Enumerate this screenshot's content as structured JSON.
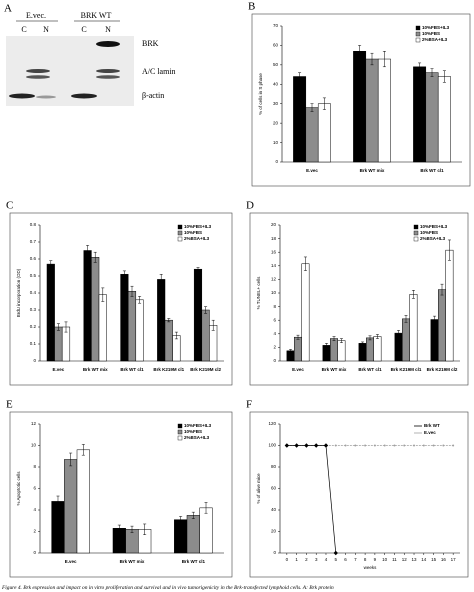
{
  "figure": {
    "panel": "A",
    "groups": [
      "E.vec.",
      "BRK WT"
    ],
    "lanes": [
      "C",
      "N",
      "C",
      "N"
    ],
    "bands": [
      "BRK",
      "A/C lamin",
      "β-actin"
    ],
    "caption": "Figure 4. Brk expression and impact on in vitro proliferation and survival and in vivo tumorigenicity in the Brk-transfected lymphoid cells. A: Brk protein"
  },
  "chart_data": [
    {
      "type": "bar",
      "panel": "B",
      "y_label": "% of cells in S phase",
      "categories": [
        "E.vec",
        "Brk WT mix",
        "Brk WT cl1"
      ],
      "series": [
        {
          "name": "10%FBS+IL3",
          "color": "#000000",
          "values": [
            44,
            57,
            49
          ],
          "errors": [
            2,
            3,
            2
          ]
        },
        {
          "name": "10%FBS",
          "color": "#8c8c8c",
          "values": [
            28,
            53,
            46
          ],
          "errors": [
            2,
            3,
            2
          ]
        },
        {
          "name": "2%BSA+IL3",
          "color": "#ffffff",
          "values": [
            30,
            53,
            44
          ],
          "errors": [
            3,
            4,
            3
          ]
        }
      ],
      "ylim": [
        0,
        70
      ],
      "yticks": [
        0,
        10,
        20,
        30,
        40,
        50,
        60,
        70
      ]
    },
    {
      "type": "bar",
      "panel": "C",
      "y_label": "BrdU incorporation (OD)",
      "categories": [
        "E.vec",
        "Brk WT mix",
        "Brk WT cl1",
        "Brk K219M cl1",
        "Brk K219M cl2"
      ],
      "series": [
        {
          "name": "10%FBS+IL3",
          "color": "#000000",
          "values": [
            0.57,
            0.65,
            0.51,
            0.48,
            0.54
          ],
          "errors": [
            0.02,
            0.03,
            0.02,
            0.03,
            0.01
          ]
        },
        {
          "name": "10%FBS",
          "color": "#8c8c8c",
          "values": [
            0.2,
            0.61,
            0.41,
            0.24,
            0.3
          ],
          "errors": [
            0.02,
            0.03,
            0.03,
            0.01,
            0.02
          ]
        },
        {
          "name": "2%BSA+IL3",
          "color": "#ffffff",
          "values": [
            0.2,
            0.39,
            0.36,
            0.15,
            0.21
          ],
          "errors": [
            0.03,
            0.04,
            0.02,
            0.02,
            0.03
          ]
        }
      ],
      "ylim": [
        0,
        0.8
      ],
      "yticks": [
        0,
        0.1,
        0.2,
        0.3,
        0.4,
        0.5,
        0.6,
        0.7,
        0.8
      ]
    },
    {
      "type": "bar",
      "panel": "D",
      "y_label": "% TUNEL+ cells",
      "categories": [
        "E.vec",
        "Brk WT mix",
        "Brk WT cl1",
        "Brk K219M cl1",
        "Brk K219M cl2"
      ],
      "series": [
        {
          "name": "10%FBS+IL3",
          "color": "#000000",
          "values": [
            1.5,
            2.3,
            2.6,
            4.1,
            6.1
          ],
          "errors": [
            0.2,
            0.3,
            0.2,
            0.4,
            0.5
          ]
        },
        {
          "name": "10%FBS",
          "color": "#8c8c8c",
          "values": [
            3.5,
            3.3,
            3.4,
            6.2,
            10.5
          ],
          "errors": [
            0.3,
            0.3,
            0.3,
            0.5,
            0.8
          ]
        },
        {
          "name": "2%BSA+IL3",
          "color": "#ffffff",
          "values": [
            14.3,
            3,
            3.6,
            9.8,
            16.3
          ],
          "errors": [
            1,
            0.3,
            0.3,
            0.6,
            1.5
          ]
        }
      ],
      "ylim": [
        0,
        20
      ],
      "yticks": [
        0,
        2,
        4,
        6,
        8,
        10,
        12,
        14,
        16,
        18,
        20
      ]
    },
    {
      "type": "bar",
      "panel": "E",
      "y_label": "% Apoptotic cells",
      "categories": [
        "E.vec",
        "Brk WT mix",
        "Brk WT cl1"
      ],
      "series": [
        {
          "name": "10%FBS+IL3",
          "color": "#000000",
          "values": [
            4.8,
            2.3,
            3.1
          ],
          "errors": [
            0.5,
            0.3,
            0.3
          ]
        },
        {
          "name": "10%FBS",
          "color": "#8c8c8c",
          "values": [
            8.7,
            2.2,
            3.5
          ],
          "errors": [
            0.6,
            0.3,
            0.3
          ]
        },
        {
          "name": "2%BSA+IL3",
          "color": "#ffffff",
          "values": [
            9.6,
            2.2,
            4.2
          ],
          "errors": [
            0.5,
            0.5,
            0.5
          ]
        }
      ],
      "ylim": [
        0,
        12
      ],
      "yticks": [
        0,
        2,
        4,
        6,
        8,
        10,
        12
      ]
    },
    {
      "type": "line",
      "panel": "F",
      "y_label": "% of alive mice",
      "x_label": "weeks",
      "x": [
        0,
        1,
        2,
        3,
        4,
        5,
        6,
        7,
        8,
        9,
        10,
        11,
        12,
        13,
        14,
        15,
        16,
        17
      ],
      "series": [
        {
          "name": "Brk WT",
          "color": "#000000",
          "values": [
            100,
            100,
            100,
            100,
            100,
            0,
            null,
            null,
            null,
            null,
            null,
            null,
            null,
            null,
            null,
            null,
            null,
            null
          ]
        },
        {
          "name": "E.vec",
          "color": "#a0a0a0",
          "values": [
            100,
            100,
            100,
            100,
            100,
            100,
            100,
            100,
            100,
            100,
            100,
            100,
            100,
            100,
            100,
            100,
            100,
            100
          ]
        }
      ],
      "xlim": [
        -0.7,
        17.7
      ],
      "xticks": [
        0,
        1,
        2,
        3,
        4,
        5,
        6,
        7,
        8,
        9,
        10,
        11,
        12,
        13,
        14,
        15,
        16,
        17
      ],
      "ylim": [
        0,
        120
      ],
      "yticks": [
        0,
        20,
        40,
        60,
        80,
        100,
        120
      ]
    }
  ]
}
